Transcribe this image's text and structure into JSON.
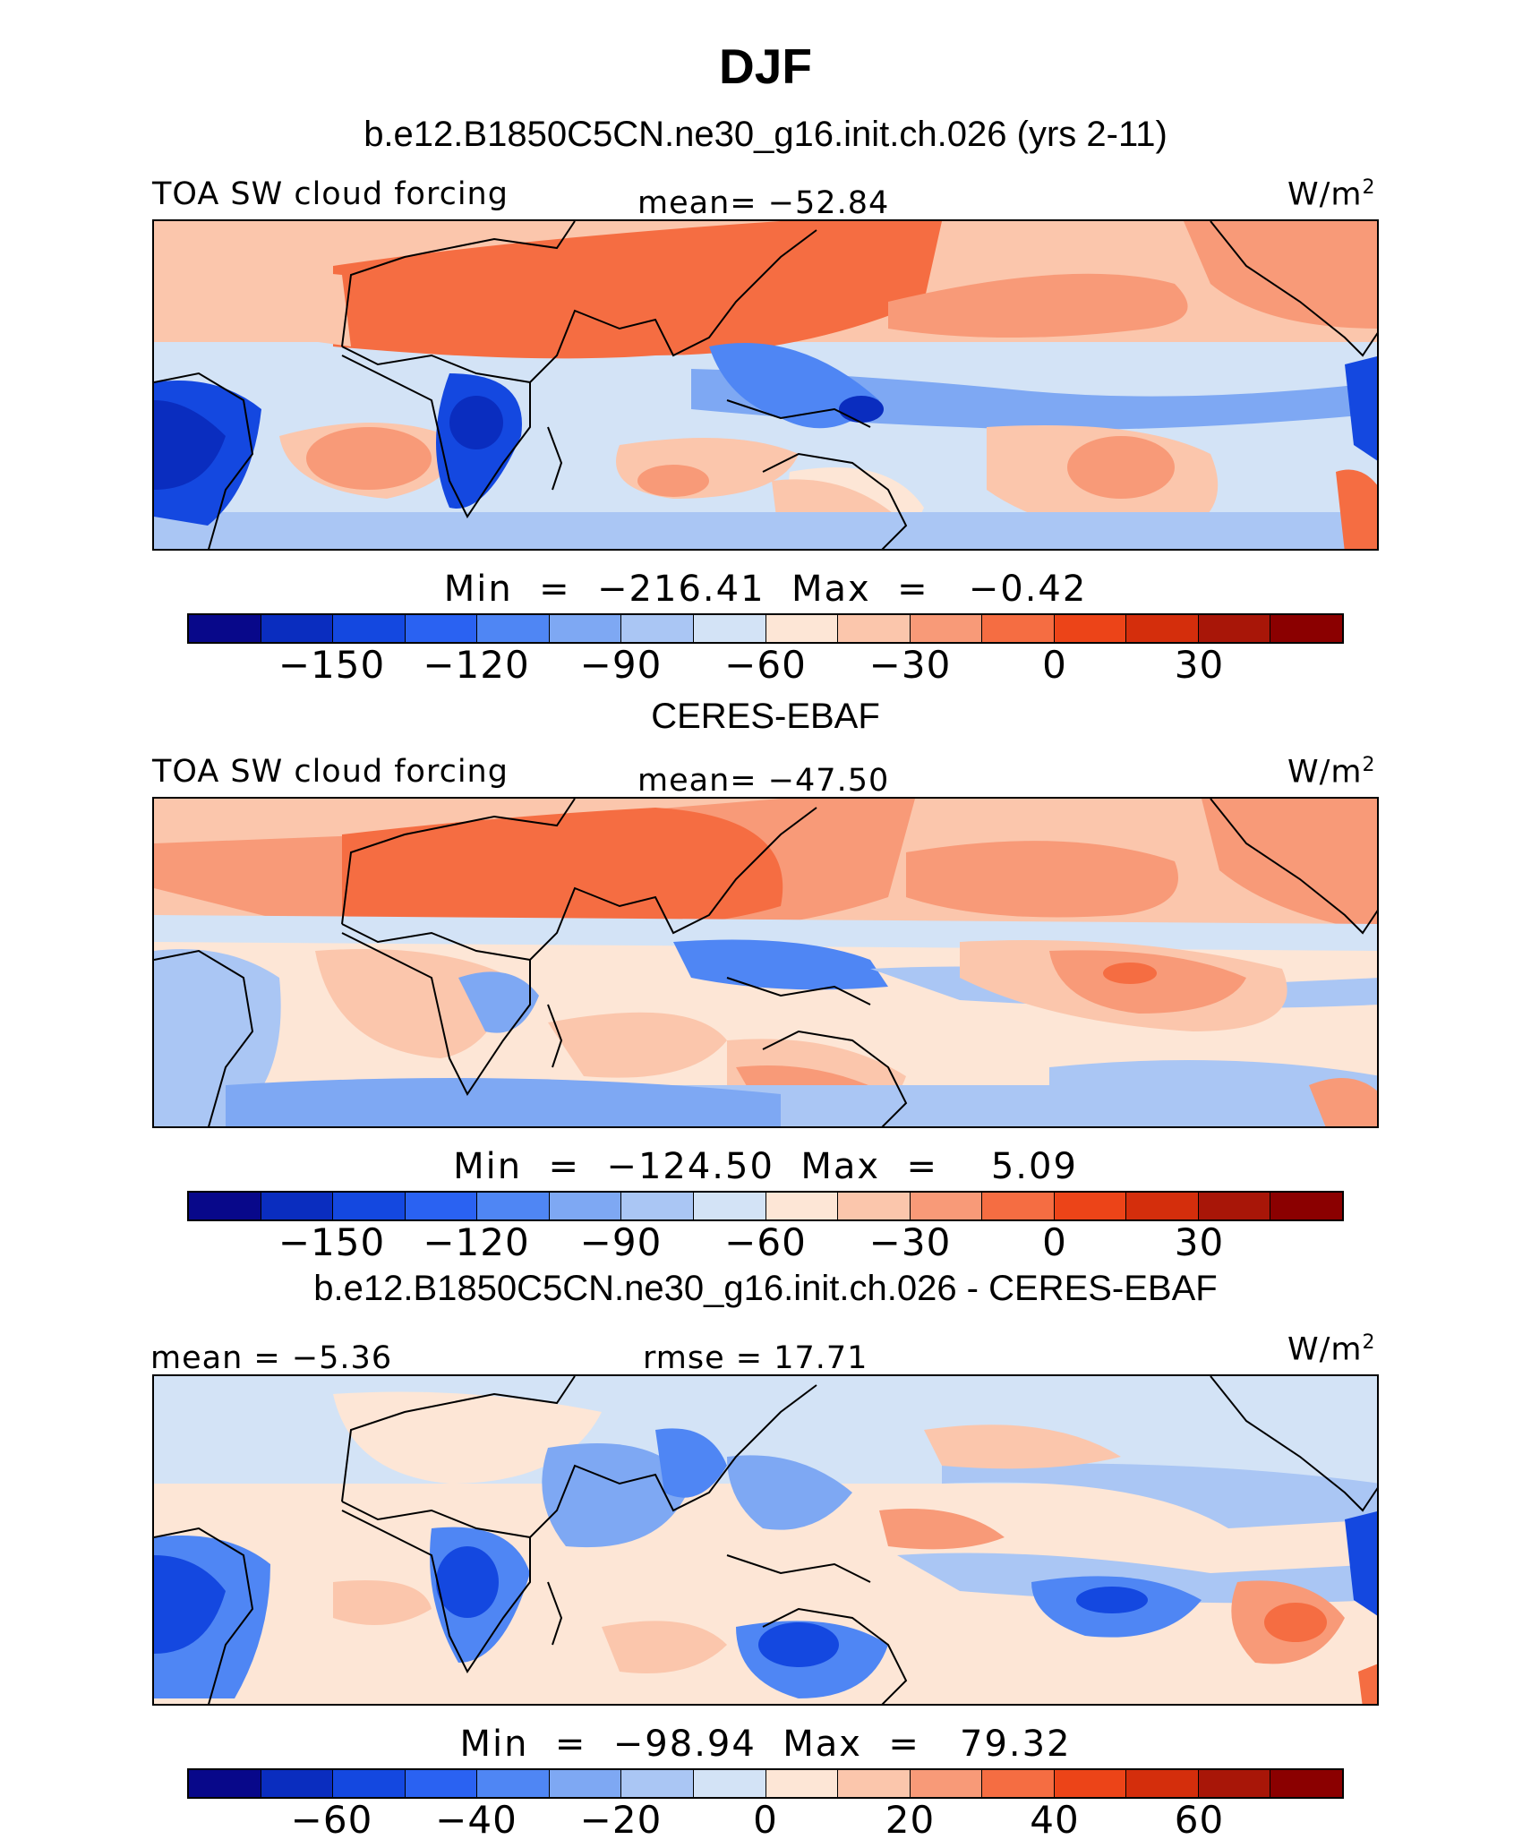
{
  "figure": {
    "title": "DJF",
    "subtitle": "b.e12.B1850C5CN.ne30_g16.init.ch.026 (yrs 2-11)"
  },
  "panels": [
    {
      "left_label": "TOA SW cloud forcing",
      "center_label": "mean= −52.84",
      "units": "W/m",
      "units_sup": "2",
      "minmax": "Min  =  −216.41  Max  =   −0.42",
      "colorbar_ticks": [
        "−150",
        "−120",
        "−90",
        "−60",
        "−30",
        "0",
        "30"
      ],
      "caption_below": "CERES-EBAF"
    },
    {
      "left_label": "TOA SW cloud forcing",
      "center_label": "mean= −47.50",
      "units": "W/m",
      "units_sup": "2",
      "minmax": "Min  =  −124.50  Max  =    5.09",
      "colorbar_ticks": [
        "−150",
        "−120",
        "−90",
        "−60",
        "−30",
        "0",
        "30"
      ],
      "caption_below": "b.e12.B1850C5CN.ne30_g16.init.ch.026 - CERES-EBAF"
    },
    {
      "left_label": "mean =   −5.36",
      "center_label": "rmse =   17.71",
      "units": "W/m",
      "units_sup": "2",
      "minmax": "Min  =  −98.94  Max  =   79.32",
      "colorbar_ticks": [
        "−60",
        "−40",
        "−20",
        "0",
        "20",
        "40",
        "60"
      ]
    }
  ],
  "colorbar_colors": [
    "#08088a",
    "#0a2dbf",
    "#1448e0",
    "#2a62f2",
    "#4f86f4",
    "#7ea8f3",
    "#aac6f4",
    "#d3e3f6",
    "#fde6d6",
    "#fbc6ac",
    "#f89a78",
    "#f56d42",
    "#ec4418",
    "#d42e0c",
    "#a81608",
    "#8b0000"
  ],
  "map_colors": {
    "deep_blue": "#1448e0",
    "mid_blue": "#4f86f4",
    "light_blue": "#aac6f4",
    "pale_blue": "#d3e3f6",
    "cream": "#fde6d6",
    "light_orange": "#fbc6ac",
    "orange": "#f89a78",
    "dark_orange": "#f56d42"
  }
}
